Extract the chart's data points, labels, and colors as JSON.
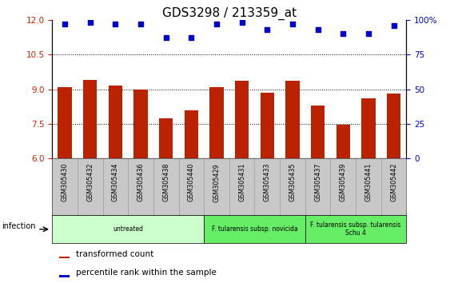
{
  "title": "GDS3298 / 213359_at",
  "samples": [
    "GSM305430",
    "GSM305432",
    "GSM305434",
    "GSM305436",
    "GSM305438",
    "GSM305440",
    "GSM305429",
    "GSM305431",
    "GSM305433",
    "GSM305435",
    "GSM305437",
    "GSM305439",
    "GSM305441",
    "GSM305442"
  ],
  "bar_values": [
    9.1,
    9.4,
    9.15,
    9.0,
    7.75,
    8.1,
    9.1,
    9.35,
    8.85,
    9.35,
    8.3,
    7.45,
    8.6,
    8.8
  ],
  "percentile_values": [
    97,
    98,
    97,
    97,
    87,
    87,
    97,
    98,
    93,
    97,
    93,
    90,
    90,
    96
  ],
  "bar_color": "#bb2200",
  "percentile_color": "#0000cc",
  "ylim_left": [
    6,
    12
  ],
  "ylim_right": [
    0,
    100
  ],
  "yticks_left": [
    6,
    7.5,
    9,
    10.5,
    12
  ],
  "yticks_right": [
    0,
    25,
    50,
    75,
    100
  ],
  "ytick_right_labels": [
    "0",
    "25",
    "50",
    "75",
    "100%"
  ],
  "groups": [
    {
      "label": "untreated",
      "start": 0,
      "end": 6,
      "color": "#ccffcc"
    },
    {
      "label": "F. tularensis subsp. novicida",
      "start": 6,
      "end": 10,
      "color": "#66ee66"
    },
    {
      "label": "F. tularensis subsp. tularensis\nSchu 4",
      "start": 10,
      "end": 14,
      "color": "#66ee66"
    }
  ],
  "infection_label": "infection",
  "legend_bar_label": "transformed count",
  "legend_pct_label": "percentile rank within the sample",
  "background_color": "#ffffff",
  "plot_bg_color": "#ffffff",
  "title_fontsize": 11,
  "axis_label_color_left": "#cc2200",
  "axis_label_color_right": "#0000cc",
  "label_area_color": "#c8c8c8",
  "label_border_color": "#999999"
}
